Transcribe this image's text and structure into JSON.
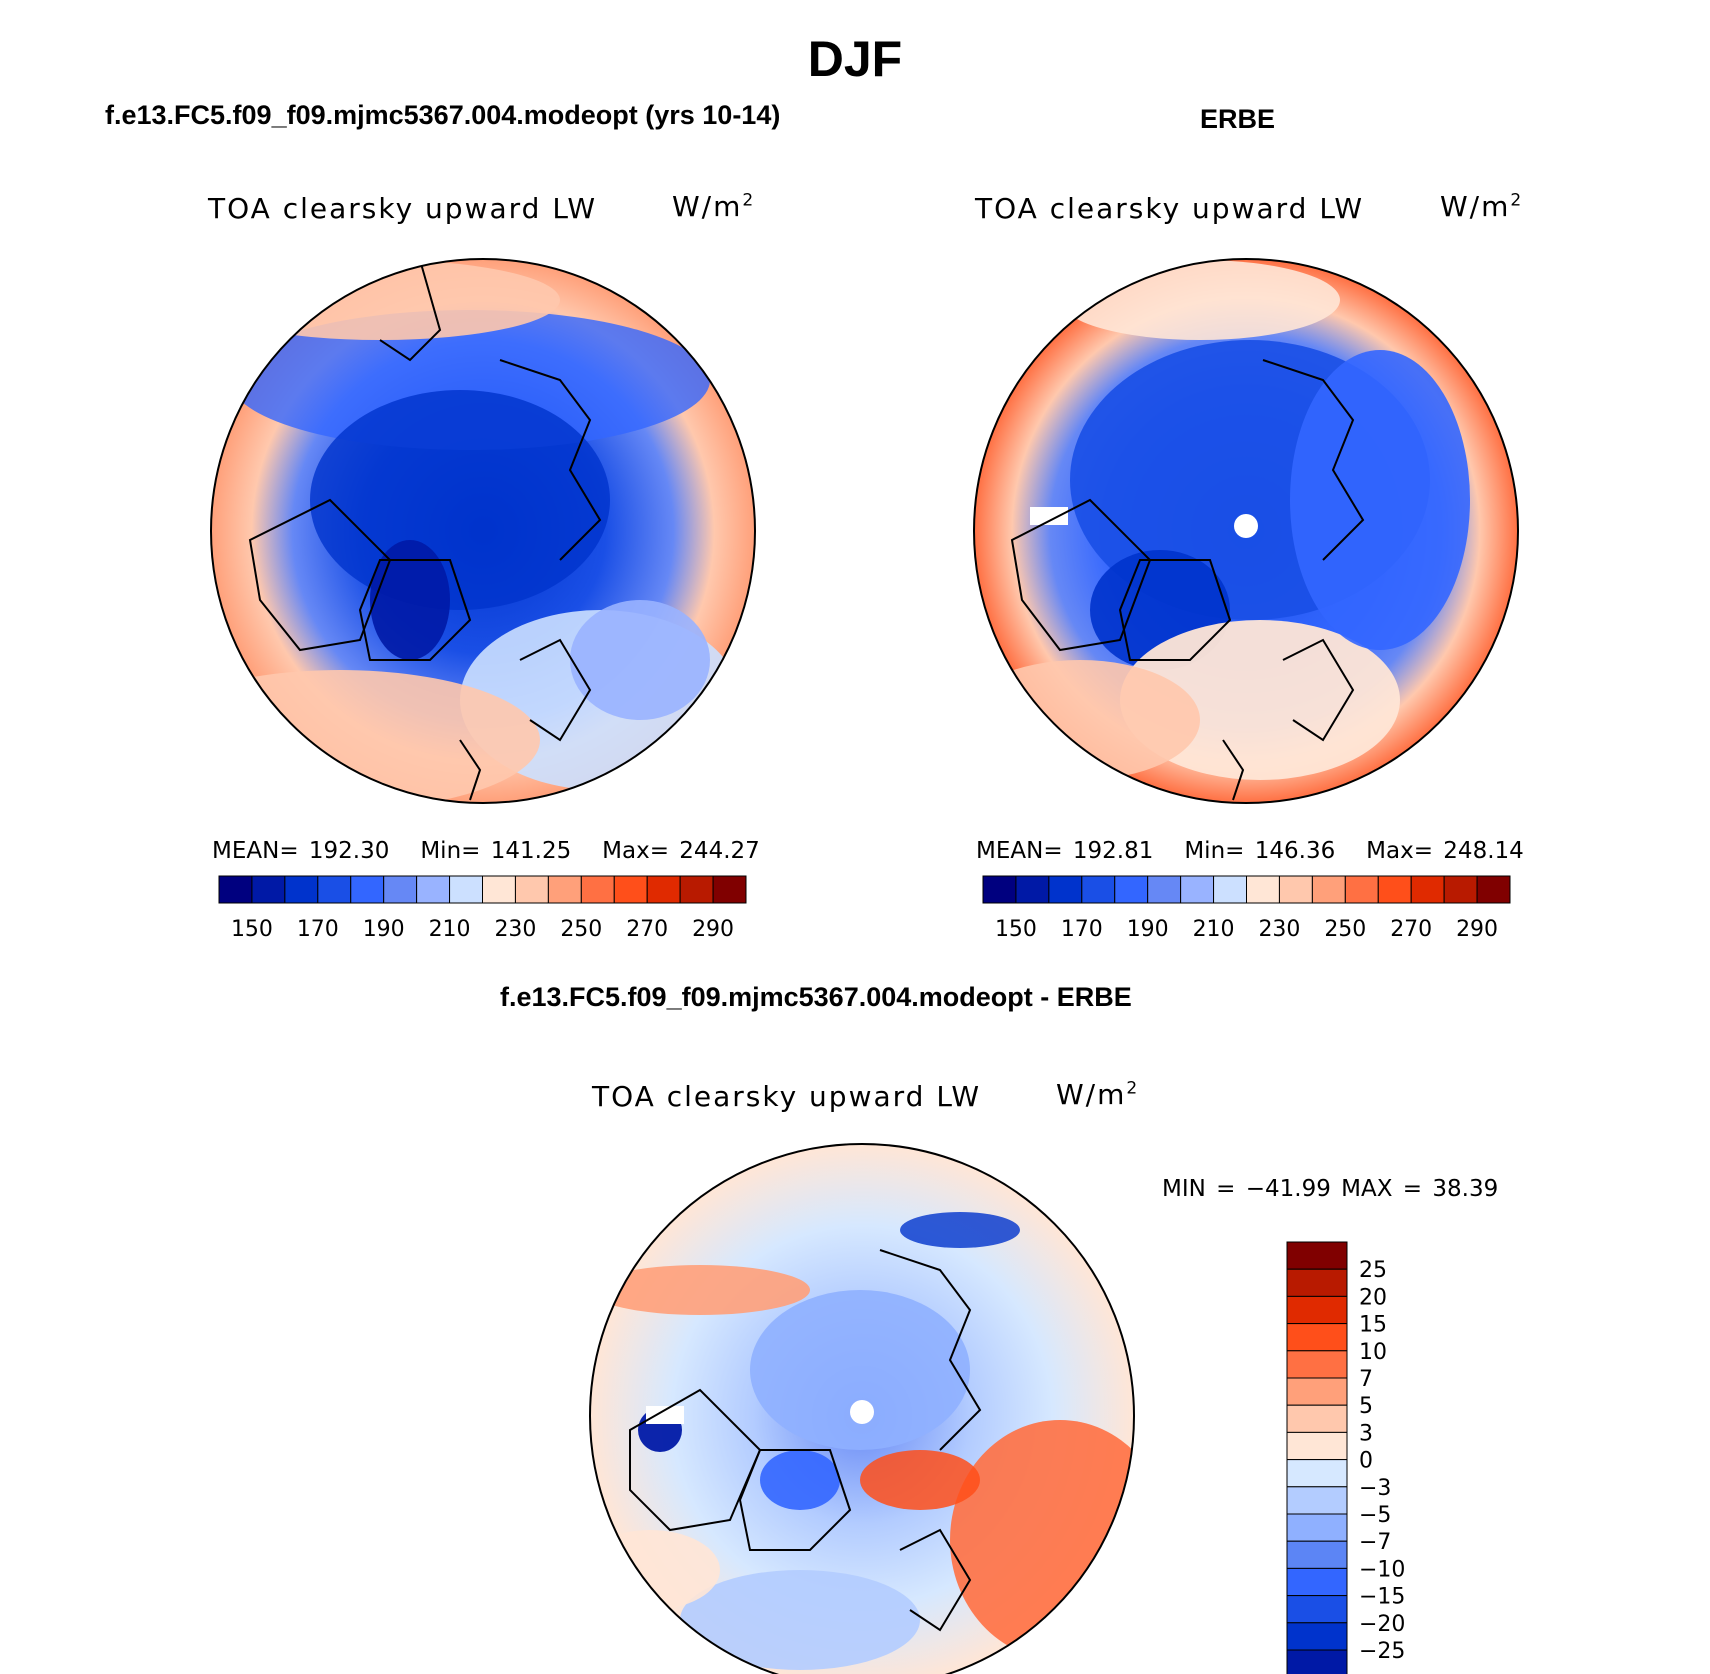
{
  "figure": {
    "title": "DJF",
    "variable": "TOA clearsky upward LW",
    "units_base": "W/m",
    "units_exp": "2"
  },
  "panels": {
    "model": {
      "title": "f.e13.FC5.f09_f09.mjmc5367.004.modeopt (yrs 10-14)",
      "mean_label": "MEAN=",
      "mean": "192.30",
      "min_label": "Min=",
      "min": "141.25",
      "max_label": "Max=",
      "max": "244.27"
    },
    "obs": {
      "title": "ERBE",
      "mean_label": "MEAN=",
      "mean": "192.81",
      "min_label": "Min=",
      "min": "146.36",
      "max_label": "Max=",
      "max": "248.14"
    },
    "diff": {
      "title": "f.e13.FC5.f09_f09.mjmc5367.004.modeopt - ERBE",
      "minmax_label": "MIN = −41.99 MAX =  38.39"
    }
  },
  "colorbar_abs": {
    "colors": [
      "#00007f",
      "#0019a6",
      "#0033cc",
      "#1a4fe6",
      "#3366ff",
      "#6688f5",
      "#99b3ff",
      "#cce0ff",
      "#ffe6d6",
      "#ffc8ad",
      "#ffa07a",
      "#ff7043",
      "#ff4f1a",
      "#e02a00",
      "#b81a00",
      "#800000"
    ],
    "labels": [
      "150",
      "170",
      "190",
      "210",
      "230",
      "250",
      "270",
      "290"
    ]
  },
  "colorbar_diff": {
    "colors": [
      "#800000",
      "#b81a00",
      "#e02a00",
      "#ff4f1a",
      "#ff7043",
      "#ffa07a",
      "#ffc8ad",
      "#ffe6d6",
      "#d6e8ff",
      "#b3ccff",
      "#8fb0ff",
      "#5c85f5",
      "#3366ff",
      "#1a4fe6",
      "#0033cc",
      "#0019a6",
      "#00007f"
    ],
    "labels": [
      "25",
      "20",
      "15",
      "10",
      "7",
      "5",
      "3",
      "0",
      "−3",
      "−5",
      "−7",
      "−10",
      "−15",
      "−20",
      "−25"
    ]
  }
}
